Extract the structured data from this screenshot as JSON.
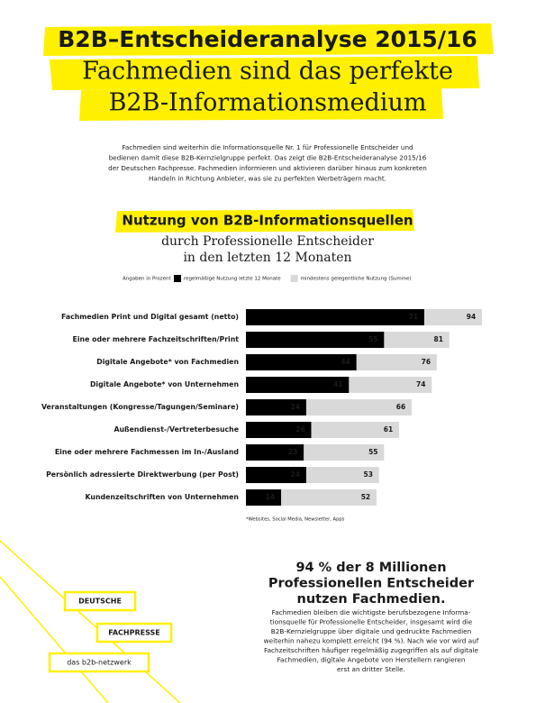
{
  "header": {
    "line1": "B2B–Entscheideranalyse 2015/16",
    "line2": "Fachmedien sind das perfekte",
    "line3": "B2B-Informationsmedium"
  },
  "intro": [
    "Fachmedien sind weiterhin die Informationsquelle Nr. 1 für Professionelle Entscheider und",
    "bedienen damit diese B2B-Kernzielgruppe perfekt. Das zeigt die B2B-Entscheideranalyse 2015/16",
    "der Deutschen Fachpresse. Fachmedien informieren und aktivieren darüber hinaus zum konkreten",
    "Handeln in Richtung Anbieter, was sie zu perfekten Werbeträgern macht."
  ],
  "chart_data": {
    "type": "bar",
    "orientation": "horizontal",
    "overlap": true,
    "title": "Nutzung von B2B-Informationsquellen",
    "subtitle": [
      "durch Professionelle Entscheider",
      "in den letzten 12 Monaten"
    ],
    "unit_note": "Angaben in Prozent",
    "categories": [
      "Fachmedien Print und Digital gesamt (netto)",
      "Eine oder mehrere Fachzeitschriften/Print",
      "Digitale Angebote* von Fachmedien",
      "Digitale Angebote* von Unternehmen",
      "Veranstaltungen (Kongresse/Tagungen/Seminare)",
      "Außendienst-/Vertreterbesuche",
      "Eine oder mehrere Fachmessen im In-/Ausland",
      "Persönlich adressierte Direktwerbung (per Post)",
      "Kundenzeitschriften von Unternehmen"
    ],
    "series": [
      {
        "name": "regelmäßige Nutzung letzte 12 Monate",
        "color": "#000000",
        "values": [
          71,
          55,
          44,
          41,
          24,
          26,
          23,
          24,
          14
        ]
      },
      {
        "name": "mindestens gelegentliche Nutzung (Summe)",
        "color": "#d9d9d9",
        "values": [
          94,
          81,
          76,
          74,
          66,
          61,
          55,
          53,
          52
        ]
      }
    ],
    "footnote": "*Websites, Social Media, Newsletter, Apps"
  },
  "highlight": {
    "headline": [
      "94 % der 8 Millionen",
      "Professionellen Entscheider",
      "nutzen Fachmedien."
    ],
    "body": [
      "Fachmedien bleiben die wichtigste berufsbezogene Informa-",
      "tionsquelle für Professionelle Entscheider, insgesamt wird die",
      "B2B-Kernzielgruppe über digitale und gedruckte Fachmedien",
      "weiterhin nahezu komplett erreicht (94 %). Nach wie vor wird auf",
      "Fachzeitschriften häufiger regelmäßig zugegriffen als auf digitale",
      "Fachmedien, digitale Angebote von Herstellern rangieren",
      "erst an dritter Stelle."
    ]
  },
  "logo": {
    "line1": "DEUTSCHE",
    "line2": "FACHPRESSE",
    "line3": "das b2b-netzwerk"
  }
}
